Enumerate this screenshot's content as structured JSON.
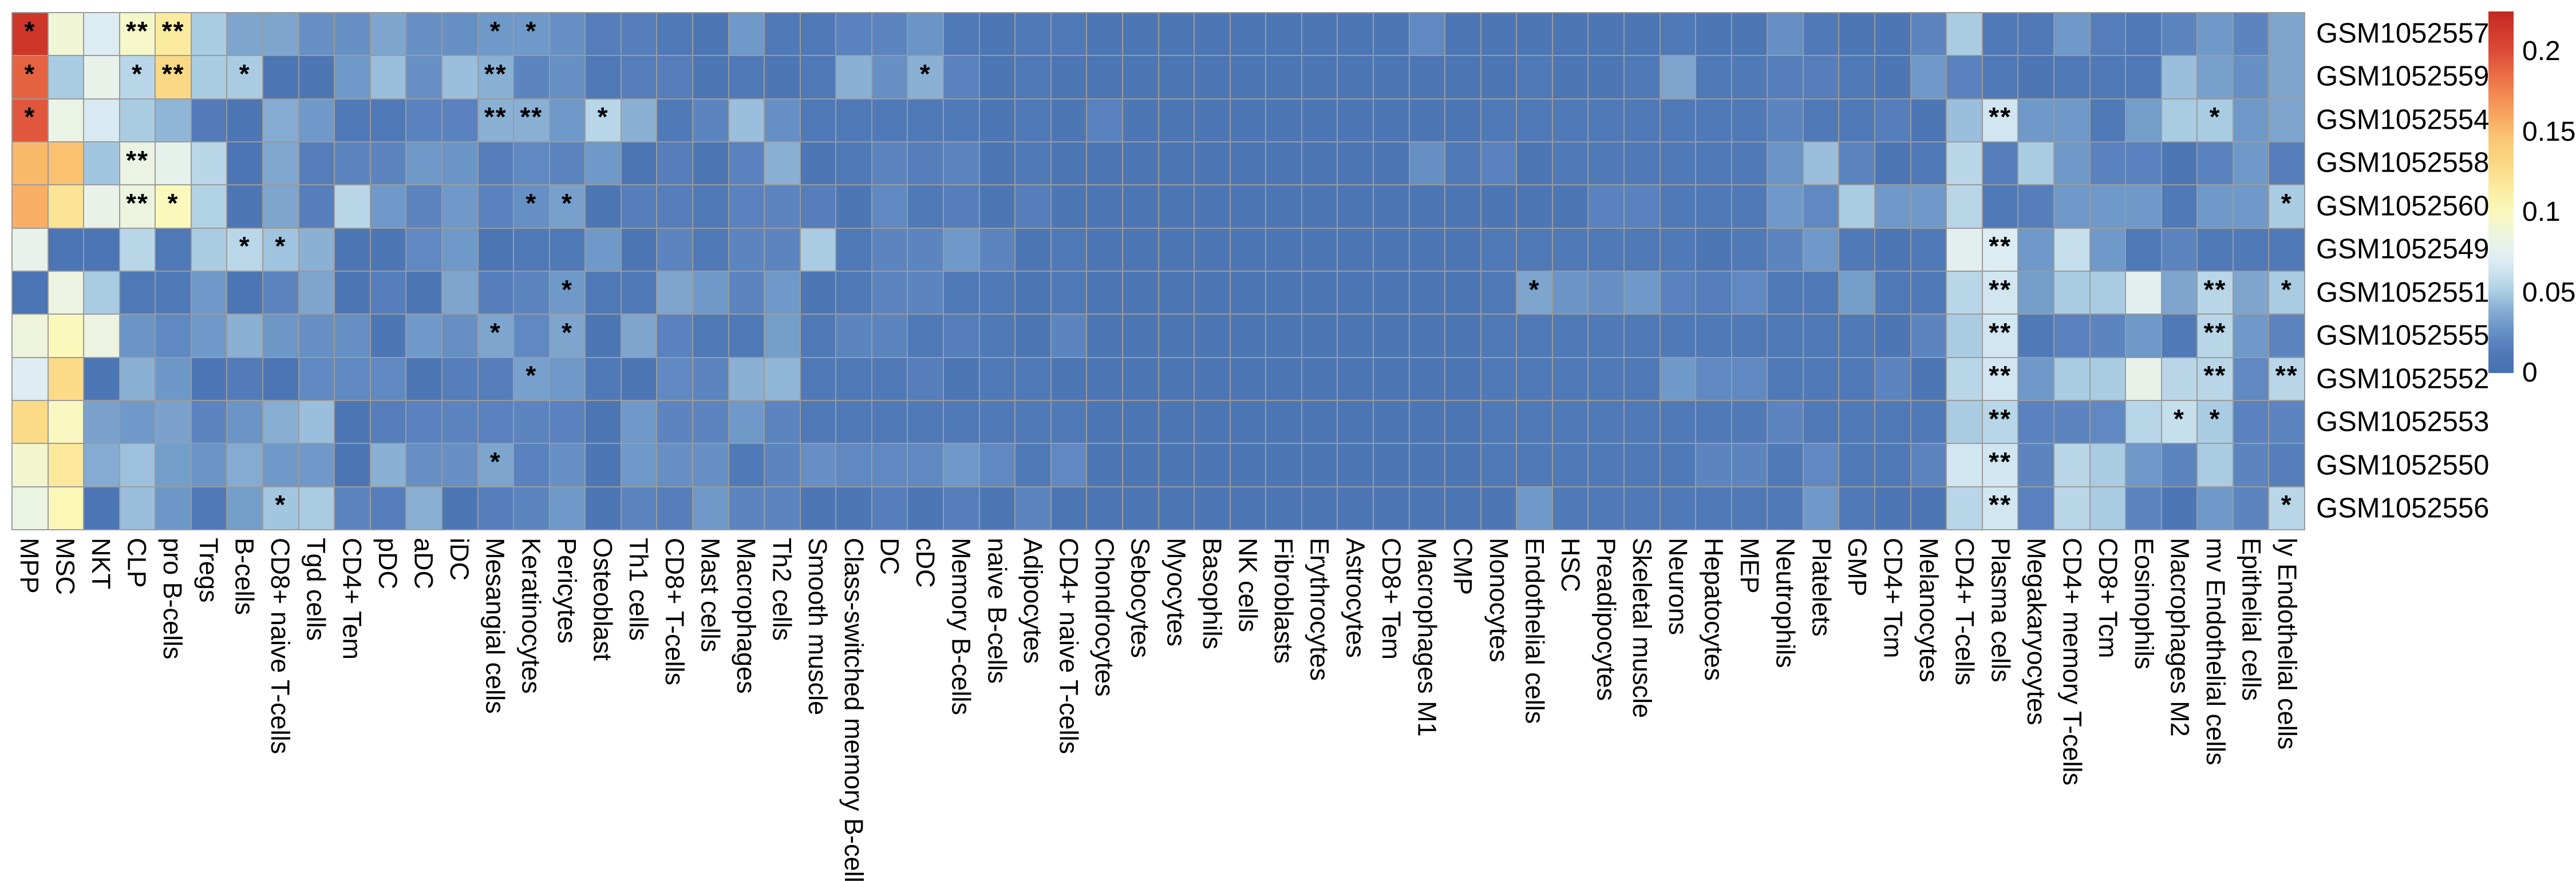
{
  "chart_data": {
    "type": "heatmap",
    "title": "",
    "xlabel": "",
    "ylabel": "",
    "legend_position": "right",
    "grid_line_color": "#9b9b9b",
    "background_color": "#ffffff",
    "rows": [
      "GSM1052557",
      "GSM1052559",
      "GSM1052554",
      "GSM1052558",
      "GSM1052560",
      "GSM1052549",
      "GSM1052551",
      "GSM1052555",
      "GSM1052552",
      "GSM1052553",
      "GSM1052550",
      "GSM1052556"
    ],
    "columns": [
      "MPP",
      "MSC",
      "NKT",
      "CLP",
      "pro B-cells",
      "Tregs",
      "B-cells",
      "CD8+ naive T-cells",
      "Tgd cells",
      "CD4+ Tem",
      "pDC",
      "aDC",
      "iDC",
      "Mesangial cells",
      "Keratinocytes",
      "Pericytes",
      "Osteoblast",
      "Th1 cells",
      "CD8+ T-cells",
      "Mast cells",
      "Macrophages",
      "Th2 cells",
      "Smooth muscle",
      "Class-switched memory B-cells",
      "DC",
      "cDC",
      "Memory B-cells",
      "naive B-cells",
      "Adipocytes",
      "CD4+ naive T-cells",
      "Chondrocytes",
      "Sebocytes",
      "Myocytes",
      "Basophils",
      "NK cells",
      "Fibroblasts",
      "Erythrocytes",
      "Astrocytes",
      "CD8+ Tem",
      "Macrophages M1",
      "CMP",
      "Monocytes",
      "Endothelial cells",
      "HSC",
      "Preadipocytes",
      "Skeletal muscle",
      "Neurons",
      "Hepatocytes",
      "MEP",
      "Neutrophils",
      "Platelets",
      "GMP",
      "CD4+ Tcm",
      "Melanocytes",
      "CD4+ T-cells",
      "Plasma cells",
      "Megakaryocytes",
      "CD4+ memory T-cells",
      "CD8+ Tcm",
      "Eosinophils",
      "Macrophages M2",
      "mv Endothelial cells",
      "Epithelial cells",
      "ly Endothelial cells"
    ],
    "values": [
      [
        0.215,
        0.09,
        0.07,
        0.095,
        0.115,
        0.05,
        0.035,
        0.035,
        0.025,
        0.025,
        0.035,
        0.025,
        0.025,
        0.03,
        0.03,
        0.025,
        0.015,
        0.015,
        0.012,
        0.01,
        0.03,
        0.012,
        0.012,
        0.018,
        0.02,
        0.028,
        0.012,
        0.01,
        0.012,
        0.012,
        0.01,
        0.01,
        0.01,
        0.01,
        0.01,
        0.01,
        0.01,
        0.01,
        0.01,
        0.022,
        0.01,
        0.01,
        0.01,
        0.01,
        0.01,
        0.01,
        0.012,
        0.01,
        0.01,
        0.025,
        0.012,
        0.01,
        0.01,
        0.02,
        0.05,
        0.012,
        0.012,
        0.03,
        0.015,
        0.012,
        0.02,
        0.03,
        0.02,
        0.035
      ],
      [
        0.19,
        0.05,
        0.08,
        0.055,
        0.13,
        0.05,
        0.05,
        0.01,
        0.01,
        0.03,
        0.045,
        0.025,
        0.045,
        0.04,
        0.02,
        0.025,
        0.012,
        0.015,
        0.015,
        0.01,
        0.012,
        0.01,
        0.012,
        0.04,
        0.025,
        0.04,
        0.018,
        0.01,
        0.012,
        0.01,
        0.01,
        0.01,
        0.01,
        0.01,
        0.01,
        0.01,
        0.01,
        0.01,
        0.01,
        0.01,
        0.01,
        0.01,
        0.012,
        0.01,
        0.01,
        0.012,
        0.035,
        0.012,
        0.012,
        0.015,
        0.015,
        0.012,
        0.01,
        0.03,
        0.018,
        0.012,
        0.01,
        0.012,
        0.012,
        0.012,
        0.045,
        0.033,
        0.025,
        0.035
      ],
      [
        0.195,
        0.082,
        0.068,
        0.05,
        0.042,
        0.013,
        0.01,
        0.038,
        0.03,
        0.012,
        0.012,
        0.018,
        0.018,
        0.04,
        0.04,
        0.03,
        0.055,
        0.04,
        0.012,
        0.02,
        0.045,
        0.025,
        0.012,
        0.012,
        0.012,
        0.012,
        0.012,
        0.01,
        0.012,
        0.01,
        0.018,
        0.01,
        0.01,
        0.01,
        0.01,
        0.01,
        0.01,
        0.01,
        0.01,
        0.01,
        0.01,
        0.012,
        0.012,
        0.012,
        0.012,
        0.012,
        0.012,
        0.012,
        0.012,
        0.02,
        0.012,
        0.012,
        0.015,
        0.01,
        0.045,
        0.065,
        0.03,
        0.03,
        0.012,
        0.032,
        0.05,
        0.05,
        0.03,
        0.035
      ],
      [
        0.152,
        0.148,
        0.048,
        0.083,
        0.078,
        0.055,
        0.008,
        0.036,
        0.015,
        0.02,
        0.02,
        0.03,
        0.028,
        0.015,
        0.022,
        0.02,
        0.03,
        0.01,
        0.015,
        0.01,
        0.018,
        0.04,
        0.01,
        0.012,
        0.02,
        0.015,
        0.02,
        0.01,
        0.012,
        0.01,
        0.01,
        0.01,
        0.01,
        0.01,
        0.01,
        0.01,
        0.01,
        0.01,
        0.01,
        0.025,
        0.012,
        0.018,
        0.01,
        0.012,
        0.012,
        0.012,
        0.012,
        0.012,
        0.012,
        0.028,
        0.045,
        0.02,
        0.01,
        0.012,
        0.055,
        0.015,
        0.05,
        0.03,
        0.018,
        0.018,
        0.01,
        0.018,
        0.03,
        0.015
      ],
      [
        0.157,
        0.12,
        0.08,
        0.086,
        0.1,
        0.053,
        0.01,
        0.035,
        0.015,
        0.055,
        0.03,
        0.02,
        0.03,
        0.018,
        0.025,
        0.033,
        0.01,
        0.015,
        0.015,
        0.012,
        0.018,
        0.02,
        0.015,
        0.01,
        0.022,
        0.012,
        0.015,
        0.01,
        0.015,
        0.01,
        0.01,
        0.01,
        0.01,
        0.01,
        0.01,
        0.01,
        0.01,
        0.01,
        0.01,
        0.01,
        0.01,
        0.01,
        0.01,
        0.01,
        0.018,
        0.018,
        0.012,
        0.012,
        0.012,
        0.03,
        0.022,
        0.05,
        0.03,
        0.03,
        0.055,
        0.012,
        0.015,
        0.03,
        0.03,
        0.03,
        0.012,
        0.03,
        0.03,
        0.05
      ],
      [
        0.079,
        0.007,
        0.008,
        0.055,
        0.011,
        0.05,
        0.056,
        0.047,
        0.04,
        0.01,
        0.01,
        0.022,
        0.03,
        0.01,
        0.012,
        0.012,
        0.03,
        0.01,
        0.02,
        0.012,
        0.02,
        0.02,
        0.05,
        0.012,
        0.02,
        0.02,
        0.03,
        0.02,
        0.01,
        0.012,
        0.01,
        0.01,
        0.01,
        0.01,
        0.01,
        0.01,
        0.01,
        0.01,
        0.01,
        0.01,
        0.01,
        0.012,
        0.012,
        0.012,
        0.012,
        0.012,
        0.012,
        0.01,
        0.012,
        0.02,
        0.03,
        0.012,
        0.01,
        0.012,
        0.075,
        0.07,
        0.03,
        0.06,
        0.03,
        0.012,
        0.02,
        0.012,
        0.012,
        0.012
      ],
      [
        0.007,
        0.084,
        0.05,
        0.011,
        0.012,
        0.03,
        0.009,
        0.02,
        0.035,
        0.01,
        0.015,
        0.01,
        0.035,
        0.015,
        0.02,
        0.03,
        0.012,
        0.012,
        0.035,
        0.03,
        0.02,
        0.03,
        0.01,
        0.012,
        0.02,
        0.02,
        0.012,
        0.012,
        0.01,
        0.012,
        0.01,
        0.01,
        0.01,
        0.01,
        0.01,
        0.01,
        0.01,
        0.01,
        0.01,
        0.01,
        0.01,
        0.012,
        0.035,
        0.028,
        0.025,
        0.03,
        0.018,
        0.015,
        0.022,
        0.012,
        0.012,
        0.032,
        0.012,
        0.012,
        0.055,
        0.065,
        0.032,
        0.05,
        0.05,
        0.075,
        0.035,
        0.055,
        0.035,
        0.05
      ],
      [
        0.087,
        0.1,
        0.084,
        0.028,
        0.022,
        0.03,
        0.04,
        0.029,
        0.025,
        0.025,
        0.01,
        0.03,
        0.025,
        0.035,
        0.022,
        0.035,
        0.01,
        0.035,
        0.018,
        0.012,
        0.012,
        0.032,
        0.012,
        0.02,
        0.02,
        0.012,
        0.015,
        0.012,
        0.01,
        0.02,
        0.01,
        0.01,
        0.01,
        0.01,
        0.01,
        0.01,
        0.01,
        0.01,
        0.01,
        0.01,
        0.01,
        0.012,
        0.012,
        0.012,
        0.012,
        0.012,
        0.012,
        0.012,
        0.012,
        0.012,
        0.012,
        0.012,
        0.01,
        0.02,
        0.05,
        0.065,
        0.012,
        0.018,
        0.02,
        0.03,
        0.012,
        0.055,
        0.03,
        0.02
      ],
      [
        0.071,
        0.128,
        0.01,
        0.04,
        0.029,
        0.009,
        0.013,
        0.008,
        0.022,
        0.022,
        0.022,
        0.01,
        0.015,
        0.015,
        0.033,
        0.03,
        0.012,
        0.01,
        0.022,
        0.02,
        0.04,
        0.042,
        0.012,
        0.012,
        0.012,
        0.015,
        0.01,
        0.012,
        0.012,
        0.01,
        0.01,
        0.01,
        0.01,
        0.01,
        0.01,
        0.01,
        0.01,
        0.01,
        0.01,
        0.01,
        0.01,
        0.012,
        0.012,
        0.012,
        0.012,
        0.012,
        0.03,
        0.022,
        0.022,
        0.012,
        0.012,
        0.012,
        0.02,
        0.01,
        0.055,
        0.065,
        0.03,
        0.05,
        0.05,
        0.08,
        0.055,
        0.055,
        0.022,
        0.055
      ],
      [
        0.128,
        0.098,
        0.034,
        0.03,
        0.034,
        0.02,
        0.028,
        0.039,
        0.045,
        0.01,
        0.015,
        0.018,
        0.02,
        0.018,
        0.02,
        0.018,
        0.01,
        0.03,
        0.02,
        0.02,
        0.03,
        0.02,
        0.012,
        0.012,
        0.012,
        0.012,
        0.012,
        0.012,
        0.012,
        0.012,
        0.01,
        0.01,
        0.01,
        0.01,
        0.01,
        0.01,
        0.01,
        0.01,
        0.01,
        0.01,
        0.01,
        0.012,
        0.012,
        0.012,
        0.012,
        0.012,
        0.012,
        0.012,
        0.012,
        0.02,
        0.012,
        0.012,
        0.012,
        0.012,
        0.05,
        0.055,
        0.018,
        0.02,
        0.022,
        0.055,
        0.06,
        0.05,
        0.018,
        0.02
      ],
      [
        0.092,
        0.117,
        0.038,
        0.046,
        0.032,
        0.028,
        0.038,
        0.03,
        0.03,
        0.01,
        0.04,
        0.025,
        0.025,
        0.035,
        0.018,
        0.025,
        0.01,
        0.03,
        0.025,
        0.025,
        0.012,
        0.02,
        0.025,
        0.022,
        0.022,
        0.022,
        0.03,
        0.022,
        0.012,
        0.022,
        0.01,
        0.01,
        0.01,
        0.01,
        0.01,
        0.01,
        0.01,
        0.01,
        0.01,
        0.01,
        0.01,
        0.012,
        0.012,
        0.012,
        0.012,
        0.012,
        0.012,
        0.02,
        0.02,
        0.012,
        0.022,
        0.012,
        0.012,
        0.02,
        0.065,
        0.065,
        0.02,
        0.055,
        0.05,
        0.03,
        0.02,
        0.05,
        0.02,
        0.015
      ],
      [
        0.083,
        0.102,
        0.009,
        0.045,
        0.029,
        0.012,
        0.032,
        0.048,
        0.05,
        0.02,
        0.015,
        0.04,
        0.01,
        0.015,
        0.02,
        0.03,
        0.01,
        0.02,
        0.015,
        0.03,
        0.02,
        0.02,
        0.01,
        0.01,
        0.015,
        0.01,
        0.015,
        0.01,
        0.02,
        0.01,
        0.01,
        0.01,
        0.01,
        0.01,
        0.01,
        0.01,
        0.01,
        0.01,
        0.01,
        0.01,
        0.01,
        0.01,
        0.03,
        0.012,
        0.012,
        0.012,
        0.012,
        0.012,
        0.012,
        0.012,
        0.03,
        0.012,
        0.01,
        0.01,
        0.055,
        0.065,
        0.018,
        0.055,
        0.05,
        0.02,
        0.01,
        0.03,
        0.02,
        0.055
      ]
    ],
    "significance": [
      [
        0,
        0,
        "*"
      ],
      [
        0,
        3,
        "**"
      ],
      [
        0,
        4,
        "**"
      ],
      [
        0,
        13,
        "*"
      ],
      [
        0,
        14,
        "*"
      ],
      [
        1,
        0,
        "*"
      ],
      [
        1,
        3,
        "*"
      ],
      [
        1,
        4,
        "**"
      ],
      [
        1,
        6,
        "*"
      ],
      [
        1,
        13,
        "**"
      ],
      [
        1,
        25,
        "*"
      ],
      [
        2,
        0,
        "*"
      ],
      [
        2,
        13,
        "**"
      ],
      [
        2,
        14,
        "**"
      ],
      [
        2,
        16,
        "*"
      ],
      [
        2,
        55,
        "**"
      ],
      [
        2,
        61,
        "*"
      ],
      [
        3,
        3,
        "**"
      ],
      [
        4,
        3,
        "**"
      ],
      [
        4,
        4,
        "*"
      ],
      [
        4,
        14,
        "*"
      ],
      [
        4,
        15,
        "*"
      ],
      [
        4,
        63,
        "*"
      ],
      [
        5,
        6,
        "*"
      ],
      [
        5,
        7,
        "*"
      ],
      [
        5,
        55,
        "**"
      ],
      [
        6,
        15,
        "*"
      ],
      [
        6,
        42,
        "*"
      ],
      [
        6,
        55,
        "**"
      ],
      [
        6,
        61,
        "**"
      ],
      [
        6,
        63,
        "*"
      ],
      [
        7,
        13,
        "*"
      ],
      [
        7,
        15,
        "*"
      ],
      [
        7,
        55,
        "**"
      ],
      [
        7,
        61,
        "**"
      ],
      [
        8,
        14,
        "*"
      ],
      [
        8,
        55,
        "**"
      ],
      [
        8,
        61,
        "**"
      ],
      [
        8,
        63,
        "**"
      ],
      [
        9,
        55,
        "**"
      ],
      [
        9,
        60,
        "*"
      ],
      [
        9,
        61,
        "*"
      ],
      [
        10,
        13,
        "*"
      ],
      [
        10,
        55,
        "**"
      ],
      [
        11,
        7,
        "*"
      ],
      [
        11,
        55,
        "**"
      ],
      [
        11,
        63,
        "*"
      ]
    ],
    "colorbar": {
      "vmax": 0.225,
      "ticks": [
        {
          "label": "0.2",
          "value": 0.2
        },
        {
          "label": "0.15",
          "value": 0.15
        },
        {
          "label": "0.1",
          "value": 0.1
        },
        {
          "label": "0.05",
          "value": 0.05
        },
        {
          "label": "0",
          "value": 0
        }
      ],
      "anchors": [
        {
          "v": 0.0,
          "color": "#4571b2"
        },
        {
          "v": 0.01,
          "color": "#4d76b5"
        },
        {
          "v": 0.02,
          "color": "#5c85c0"
        },
        {
          "v": 0.03,
          "color": "#6f99c8"
        },
        {
          "v": 0.04,
          "color": "#8ab0d4"
        },
        {
          "v": 0.05,
          "color": "#a9cce3"
        },
        {
          "v": 0.06,
          "color": "#c6dfed"
        },
        {
          "v": 0.07,
          "color": "#dcecf3"
        },
        {
          "v": 0.08,
          "color": "#e9f2e9"
        },
        {
          "v": 0.09,
          "color": "#f0f5d5"
        },
        {
          "v": 0.1,
          "color": "#faf9bb"
        },
        {
          "v": 0.11,
          "color": "#fbf0a8"
        },
        {
          "v": 0.12,
          "color": "#fbe595"
        },
        {
          "v": 0.13,
          "color": "#fbd885"
        },
        {
          "v": 0.145,
          "color": "#fac876"
        },
        {
          "v": 0.16,
          "color": "#f8a75f"
        },
        {
          "v": 0.18,
          "color": "#ee7a4b"
        },
        {
          "v": 0.2,
          "color": "#dd4b38"
        },
        {
          "v": 0.225,
          "color": "#c42821"
        }
      ]
    }
  }
}
